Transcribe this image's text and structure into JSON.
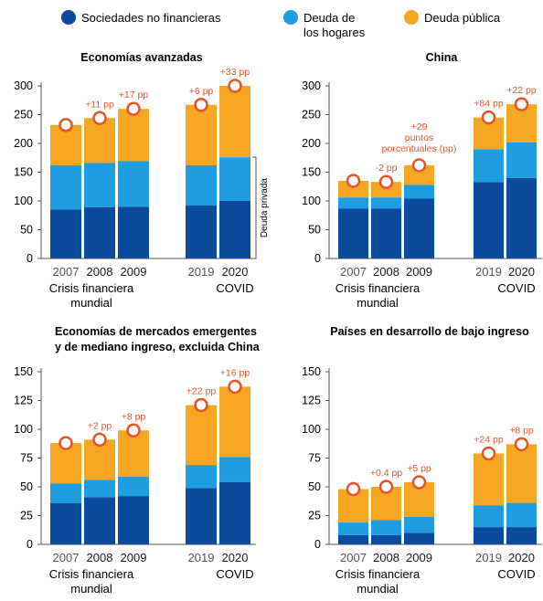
{
  "legend": [
    {
      "label": "Sociedades no financieras",
      "color": "#0b4a9c"
    },
    {
      "label": "Deuda de los hogares",
      "color": "#1e9de1"
    },
    {
      "label": "Deuda pública",
      "color": "#f5a623"
    }
  ],
  "marker_color": "#e8542a",
  "annotation_color": "#e8542a",
  "private_debt_label": "Deuda privada",
  "chart_data": [
    {
      "type": "bar",
      "stacked": true,
      "title": "Economías avanzadas",
      "ylim": [
        0,
        300
      ],
      "yticks": [
        0,
        50,
        100,
        150,
        200,
        250,
        300
      ],
      "categories": [
        "2007",
        "2008",
        "2009",
        "2019",
        "2020"
      ],
      "group_labels": [
        {
          "text": "Crisis financiera mundial",
          "categories": [
            "2007",
            "2008",
            "2009"
          ]
        },
        {
          "text": "COVID",
          "categories": [
            "2020"
          ]
        }
      ],
      "series": [
        {
          "name": "Sociedades no financieras",
          "values": [
            85,
            89,
            90,
            92,
            100
          ]
        },
        {
          "name": "Deuda de los hogares",
          "values": [
            77,
            77,
            79,
            70,
            76
          ]
        },
        {
          "name": "Deuda pública",
          "values": [
            70,
            78,
            91,
            105,
            124
          ]
        }
      ],
      "annotations": [
        "",
        "+11 pp",
        "+17 pp",
        "+6 pp",
        "+33 pp"
      ]
    },
    {
      "type": "bar",
      "stacked": true,
      "title": "China",
      "ylim": [
        0,
        300
      ],
      "yticks": [
        0,
        50,
        100,
        150,
        200,
        250,
        300
      ],
      "categories": [
        "2007",
        "2008",
        "2009",
        "2019",
        "2020"
      ],
      "group_labels": [
        {
          "text": "Crisis financiera mundial",
          "categories": [
            "2007",
            "2008",
            "2009"
          ]
        },
        {
          "text": "COVID",
          "categories": [
            "2020"
          ]
        }
      ],
      "series": [
        {
          "name": "Sociedades no financieras",
          "values": [
            87,
            87,
            104,
            133,
            140
          ]
        },
        {
          "name": "Deuda de los hogares",
          "values": [
            19,
            19,
            24,
            57,
            62
          ]
        },
        {
          "name": "Deuda pública",
          "values": [
            29,
            27,
            34,
            55,
            66
          ]
        }
      ],
      "annotations": [
        "",
        "-2 pp",
        "+29 puntos porcentuales (pp)",
        "+84 pp",
        "+22 pp"
      ]
    },
    {
      "type": "bar",
      "stacked": true,
      "title": "Economías de mercados emergentes y de mediano ingreso, excluida China",
      "ylim": [
        0,
        150
      ],
      "yticks": [
        0,
        25,
        50,
        75,
        100,
        125,
        150
      ],
      "categories": [
        "2007",
        "2008",
        "2009",
        "2019",
        "2020"
      ],
      "group_labels": [
        {
          "text": "Crisis financiera mundial",
          "categories": [
            "2007",
            "2008",
            "2009"
          ]
        },
        {
          "text": "COVID",
          "categories": [
            "2020"
          ]
        }
      ],
      "series": [
        {
          "name": "Sociedades no financieras",
          "values": [
            36,
            41,
            42,
            49,
            54
          ]
        },
        {
          "name": "Deuda de los hogares",
          "values": [
            17,
            15,
            17,
            20,
            22
          ]
        },
        {
          "name": "Deuda pública",
          "values": [
            35,
            35,
            40,
            52,
            61
          ]
        }
      ],
      "annotations": [
        "",
        "+2 pp",
        "+8 pp",
        "+22 pp",
        "+16 pp"
      ]
    },
    {
      "type": "bar",
      "stacked": true,
      "title": "Países en desarrollo de bajo ingreso",
      "ylim": [
        0,
        150
      ],
      "yticks": [
        0,
        25,
        50,
        75,
        100,
        125,
        150
      ],
      "categories": [
        "2007",
        "2008",
        "2009",
        "2019",
        "2020"
      ],
      "group_labels": [
        {
          "text": "Crisis financiera mundial",
          "categories": [
            "2007",
            "2008",
            "2009"
          ]
        },
        {
          "text": "COVID",
          "categories": [
            "2020"
          ]
        }
      ],
      "series": [
        {
          "name": "Sociedades no financieras",
          "values": [
            8,
            8,
            10,
            15,
            15
          ]
        },
        {
          "name": "Deuda de los hogares",
          "values": [
            11,
            13,
            14,
            19,
            21
          ]
        },
        {
          "name": "Deuda pública",
          "values": [
            29,
            29,
            30,
            45,
            51
          ]
        }
      ],
      "annotations": [
        "",
        "+0.4 pp",
        "+5 pp",
        "+24 pp",
        "+8 pp"
      ]
    }
  ]
}
